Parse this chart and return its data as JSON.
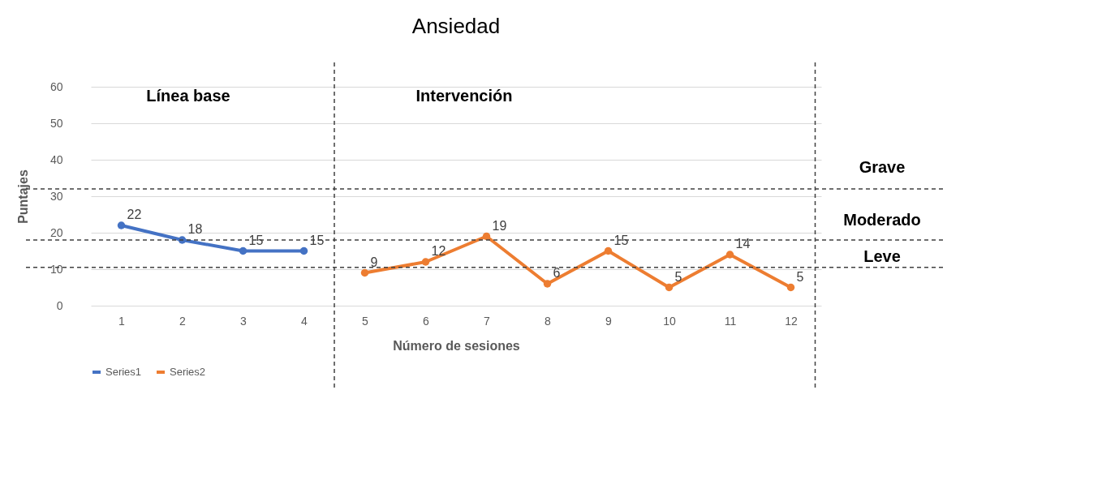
{
  "chart_data": {
    "type": "line",
    "title": "Ansiedad",
    "xlabel": "Número de sesiones",
    "ylabel": "Puntajes",
    "xlim": [
      0.5,
      12.5
    ],
    "xticks": [
      1,
      2,
      3,
      4,
      5,
      6,
      7,
      8,
      9,
      10,
      11,
      12
    ],
    "ylim": [
      0,
      60
    ],
    "yticks": [
      0,
      10,
      20,
      30,
      40,
      50,
      60
    ],
    "series": [
      {
        "name": "Series1",
        "color": "#4472c4",
        "x": [
          1,
          2,
          3,
          4
        ],
        "values": [
          22,
          18,
          15,
          15
        ]
      },
      {
        "name": "Series2",
        "color": "#ed7d31",
        "x": [
          5,
          6,
          7,
          8,
          9,
          10,
          11,
          12
        ],
        "values": [
          9,
          12,
          19,
          6,
          15,
          5,
          14,
          5
        ]
      }
    ],
    "ref_lines": [
      {
        "axis": "y",
        "value": 32,
        "line_style": "dashed",
        "color": "#404040"
      },
      {
        "axis": "y",
        "value": 18,
        "line_style": "dashed",
        "color": "#404040"
      },
      {
        "axis": "y",
        "value": 10.5,
        "line_style": "dashed",
        "color": "#404040"
      },
      {
        "axis": "x",
        "value": 4.5,
        "line_style": "dashed",
        "color": "#404040"
      },
      {
        "axis": "x",
        "value": 12.4,
        "line_style": "dashed",
        "color": "#404040"
      }
    ],
    "annotations": [
      "Línea base",
      "Intervención",
      "Grave",
      "Moderado",
      "Leve"
    ],
    "data_labels": true,
    "grid": "y",
    "legend": "bottom",
    "marker": "circle",
    "line_style": "solid"
  }
}
